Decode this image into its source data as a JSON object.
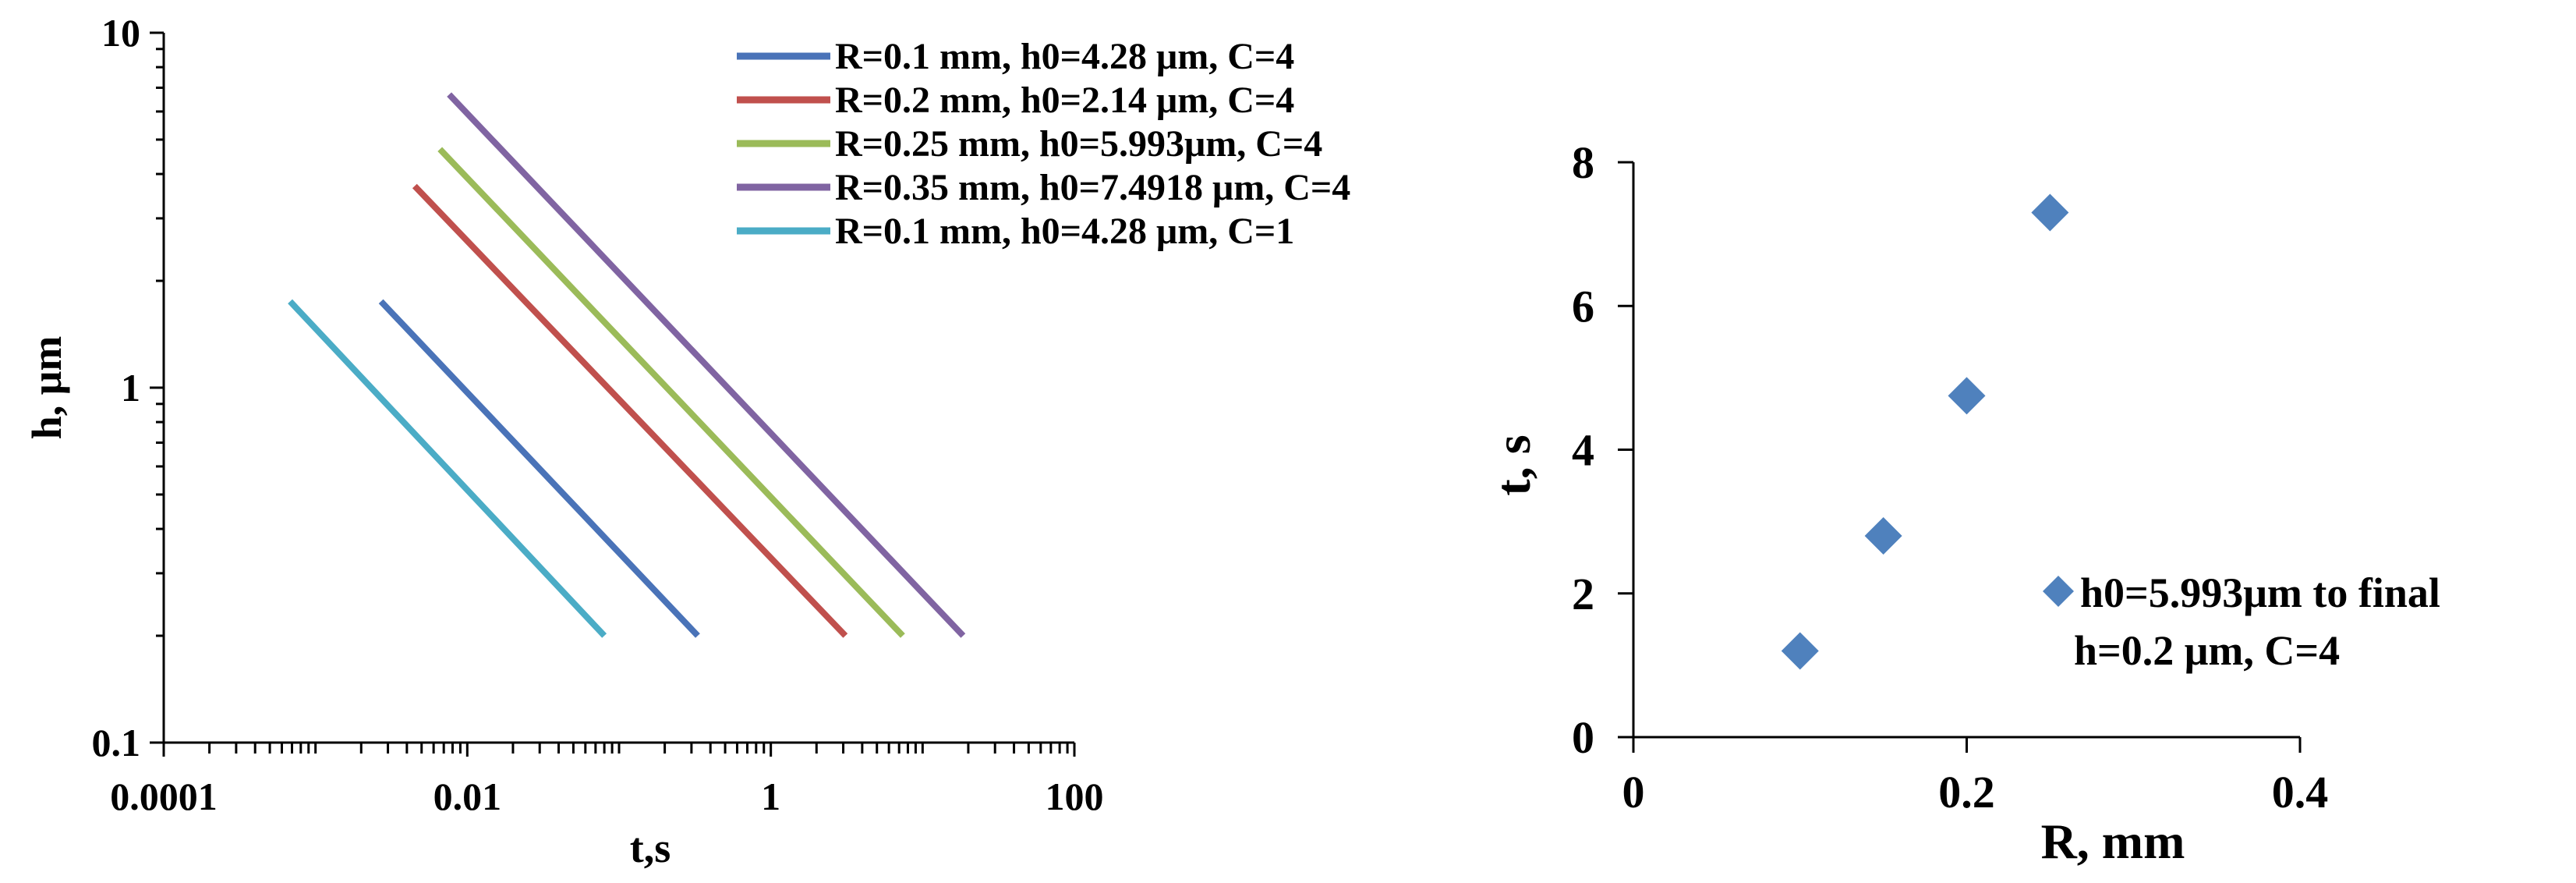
{
  "chart_data": [
    {
      "type": "line",
      "x_scale": "log",
      "y_scale": "log",
      "xlabel": "t,s",
      "ylabel": "h, μm",
      "xlim": [
        0.0001,
        100
      ],
      "ylim": [
        0.1,
        10
      ],
      "x_ticks": [
        "0.0001",
        "0.01",
        "1",
        "100"
      ],
      "y_ticks": [
        "0.1",
        "1",
        "10"
      ],
      "grid": false,
      "legend_position": "top-right",
      "series": [
        {
          "name": "R=0.1 mm, h0=4.28 μm, C=4",
          "color": "#4a73b8",
          "x": [
            0.0027,
            0.33
          ],
          "y": [
            1.75,
            0.2
          ]
        },
        {
          "name": "R=0.2 mm, h0=2.14 μm, C=4",
          "color": "#c0504d",
          "x": [
            0.0045,
            3.1
          ],
          "y": [
            3.7,
            0.2
          ]
        },
        {
          "name": "R=0.25 mm, h0=5.993μm, C=4",
          "color": "#9bbb59",
          "x": [
            0.0066,
            7.4
          ],
          "y": [
            4.7,
            0.2
          ]
        },
        {
          "name": "R=0.35 mm, h0=7.4918 μm, C=4",
          "color": "#8064a2",
          "x": [
            0.0076,
            18.5
          ],
          "y": [
            6.7,
            0.2
          ]
        },
        {
          "name": "R=0.1 mm, h0=4.28 μm, C=1",
          "color": "#4bacc6",
          "x": [
            0.00068,
            0.08
          ],
          "y": [
            1.75,
            0.2
          ]
        }
      ]
    },
    {
      "type": "scatter",
      "xlabel": "R, mm",
      "ylabel": "t, s",
      "xlim": [
        0,
        0.4
      ],
      "ylim": [
        0,
        8
      ],
      "x_ticks": [
        "0",
        "0.2",
        "0.4"
      ],
      "y_ticks": [
        "0",
        "2",
        "4",
        "6",
        "8"
      ],
      "grid": false,
      "legend_position": "right",
      "series": [
        {
          "name_line1": "h0=5.993μm to final",
          "name_line2": "h=0.2 μm, C=4",
          "color": "#4f81bd",
          "marker": "diamond",
          "x": [
            0.1,
            0.15,
            0.2,
            0.25
          ],
          "y": [
            1.2,
            2.8,
            4.75,
            7.3
          ]
        }
      ]
    }
  ]
}
